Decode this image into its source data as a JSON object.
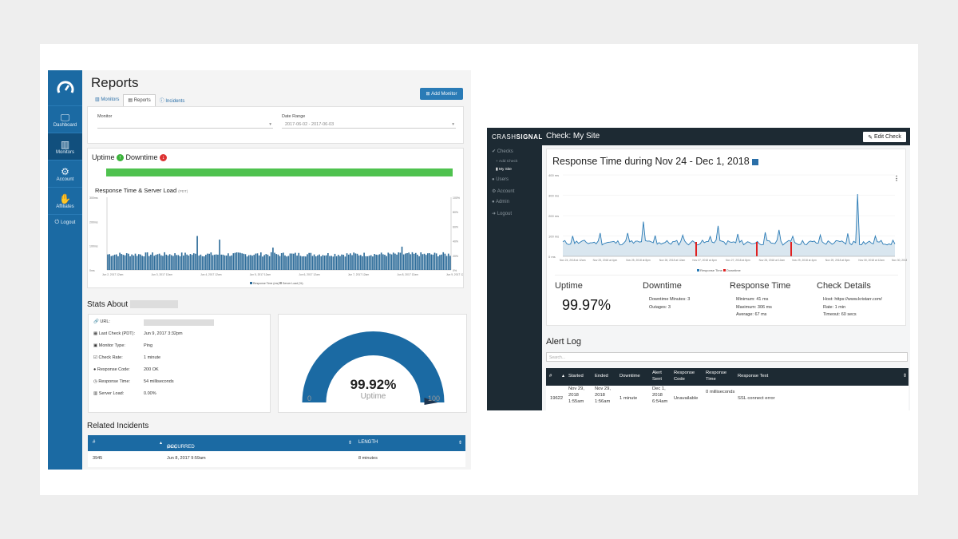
{
  "left": {
    "title": "Reports",
    "tabs": [
      "Monitors",
      "Reports",
      "Incidents"
    ],
    "add_label": "Add Monitor",
    "sidebar": [
      {
        "label": "Dashboard",
        "icon": "monitor-icon"
      },
      {
        "label": "Monitors",
        "icon": "bar-chart-icon"
      },
      {
        "label": "Account",
        "icon": "gear-icon"
      },
      {
        "label": "Affiliates",
        "icon": "handshake-icon"
      },
      {
        "label": "Logout",
        "icon": "power-icon"
      }
    ],
    "filters": {
      "monitor_label": "Monitor",
      "date_label": "Date Range",
      "date_value": "2017-06-02 - 2017-06-03"
    },
    "uptime_label": "Uptime",
    "downtime_label": "Downtime",
    "chart_title": "Response Time & Server Load",
    "chart_tz": "(PDT)",
    "chart_y_left": [
      "300ms",
      "200ms",
      "100ms",
      "0ms"
    ],
    "chart_y_right": [
      "100%",
      "80%",
      "60%",
      "40%",
      "20%",
      "0%"
    ],
    "chart_x": [
      "Jun 2, 2017 12am",
      "Jun 3, 2017 12am",
      "Jun 4, 2017 12am",
      "Jun 5, 2017 12am",
      "Jun 6, 2017 12am",
      "Jun 7, 2017 12am",
      "Jun 8, 2017 12am",
      "Jun 9, 2017 12am"
    ],
    "chart_legend": [
      "Response Time (ms)",
      "Server Load (%)"
    ],
    "stats_title": "Stats About",
    "stats": [
      [
        "URL:",
        ""
      ],
      [
        "Last Check (PDT):",
        "Jun 9, 2017 3:32pm"
      ],
      [
        "Monitor Type:",
        "Ping"
      ],
      [
        "Check Rate:",
        "1 minute"
      ],
      [
        "Response Code:",
        "200 OK"
      ],
      [
        "Response Time:",
        "54 milliseconds"
      ],
      [
        "Server Load:",
        "0.00%"
      ]
    ],
    "gauge": {
      "value": "99.92%",
      "label": "Uptime",
      "min": "0",
      "max": "100",
      "fraction": 0.9992
    },
    "incidents_title": "Related Incidents",
    "inc_headers": [
      "#",
      "OCCURRED",
      "(PDT)",
      "LENGTH"
    ],
    "inc_row": [
      "3945",
      "Jun 8, 2017 9:59am",
      "8 minutes"
    ]
  },
  "right": {
    "brand_a": "CRASH",
    "brand_b": "SIGNAL",
    "check_title": "Check: My Site",
    "edit_label": "Edit Check",
    "sidebar": [
      "Checks",
      "Add Check",
      "My Site",
      "Users",
      "Account",
      "Admin",
      "Logout"
    ],
    "chart_title": "Response Time during Nov 24 - Dec 1, 2018",
    "chart_y": [
      "400 ms",
      "300 ms",
      "200 ms",
      "100 ms",
      "0 ms"
    ],
    "chart_x": [
      "Nov 24, 2018 at 12am",
      "Nov 25, 2018 at 4pm",
      "Nov 25, 2018 at 8pm",
      "Nov 26, 2018 at 12am",
      "Nov 27, 2018 at 4pm",
      "Nov 27, 2018 at 8pm",
      "Nov 28, 2018 at 12am",
      "Nov 29, 2018 at 4pm",
      "Nov 29, 2018 at 8pm",
      "Nov 30, 2018 at 12am",
      "Nov 30, 2018 at 4pm"
    ],
    "legend": [
      "Response Time",
      "Downtime"
    ],
    "stats": {
      "uptime_h": "Uptime",
      "uptime_v": "99.97%",
      "down_h": "Downtime",
      "down_1": "Downtime Minutes: 3",
      "down_2": "Outages: 3",
      "resp_h": "Response Time",
      "resp_1": "Minimum: 41 ms",
      "resp_2": "Maximum: 306 ms",
      "resp_3": "Average: 67 ms",
      "det_h": "Check Details",
      "det_1": "Host: https://www.kristarr.com/",
      "det_2": "Rate: 1 min",
      "det_3": "Timeout: 60 secs"
    },
    "alert_title": "Alert Log",
    "search_placeholder": "Search...",
    "alert_headers": [
      "#",
      "Started",
      "Ended",
      "Downtime",
      "Alert Sent",
      "Response Code",
      "Response Time",
      "Response Text"
    ],
    "alert_row": [
      "19622",
      "Nov 29, 2018 1:55am",
      "Nov 29, 2018 1:56am",
      "1 minute",
      "Dec 1, 2018 6:54am",
      "Unavailable",
      "0 milliseconds",
      "SSL connect error"
    ]
  }
}
